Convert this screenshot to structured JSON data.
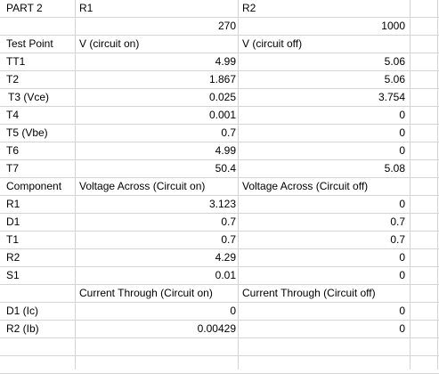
{
  "sheet": {
    "rows": [
      {
        "a": "PART 2",
        "b": "R1",
        "c": "R2"
      },
      {
        "a": "",
        "b_num": "270",
        "c_num": "1000"
      },
      {
        "a": "Test Point",
        "b": "V (circuit on)",
        "c": "V (circuit off)"
      },
      {
        "a": "TT1",
        "b_num": "4.99",
        "c_num": "5.06"
      },
      {
        "a": "T2",
        "b_num": "1.867",
        "c_num": "5.06"
      },
      {
        "a": "T3 (Vce)",
        "b_num": "0.025",
        "c_num": "3.754"
      },
      {
        "a": "T4",
        "b_num": "0.001",
        "c_num": "0"
      },
      {
        "a": "T5 (Vbe)",
        "b_num": "0.7",
        "c_num": "0"
      },
      {
        "a": "T6",
        "b_num": "4.99",
        "c_num": "0"
      },
      {
        "a": "T7",
        "b_num": "50.4",
        "c_num": "5.08"
      },
      {
        "a": "Component",
        "b": "Voltage Across (Circuit on)",
        "c": "Voltage Across (Circuit off)"
      },
      {
        "a": "R1",
        "b_num": "3.123",
        "c_num": "0"
      },
      {
        "a": "D1",
        "b_num": "0.7",
        "c_num": "0.7"
      },
      {
        "a": "T1",
        "b_num": "0.7",
        "c_num": "0.7"
      },
      {
        "a": "R2",
        "b_num": "4.29",
        "c_num": "0"
      },
      {
        "a": "S1",
        "b_num": "0.01",
        "c_num": "0"
      },
      {
        "a": "",
        "b": "Current Through (Circuit on)",
        "c": "Current Through (Circuit off)"
      },
      {
        "a": "D1 (Ic)",
        "b_num": "0",
        "c_num": "0"
      },
      {
        "a": "R2 (Ib)",
        "b_num": "0.00429",
        "c_num": "0"
      },
      {
        "a": ""
      },
      {
        "a": ""
      }
    ]
  }
}
